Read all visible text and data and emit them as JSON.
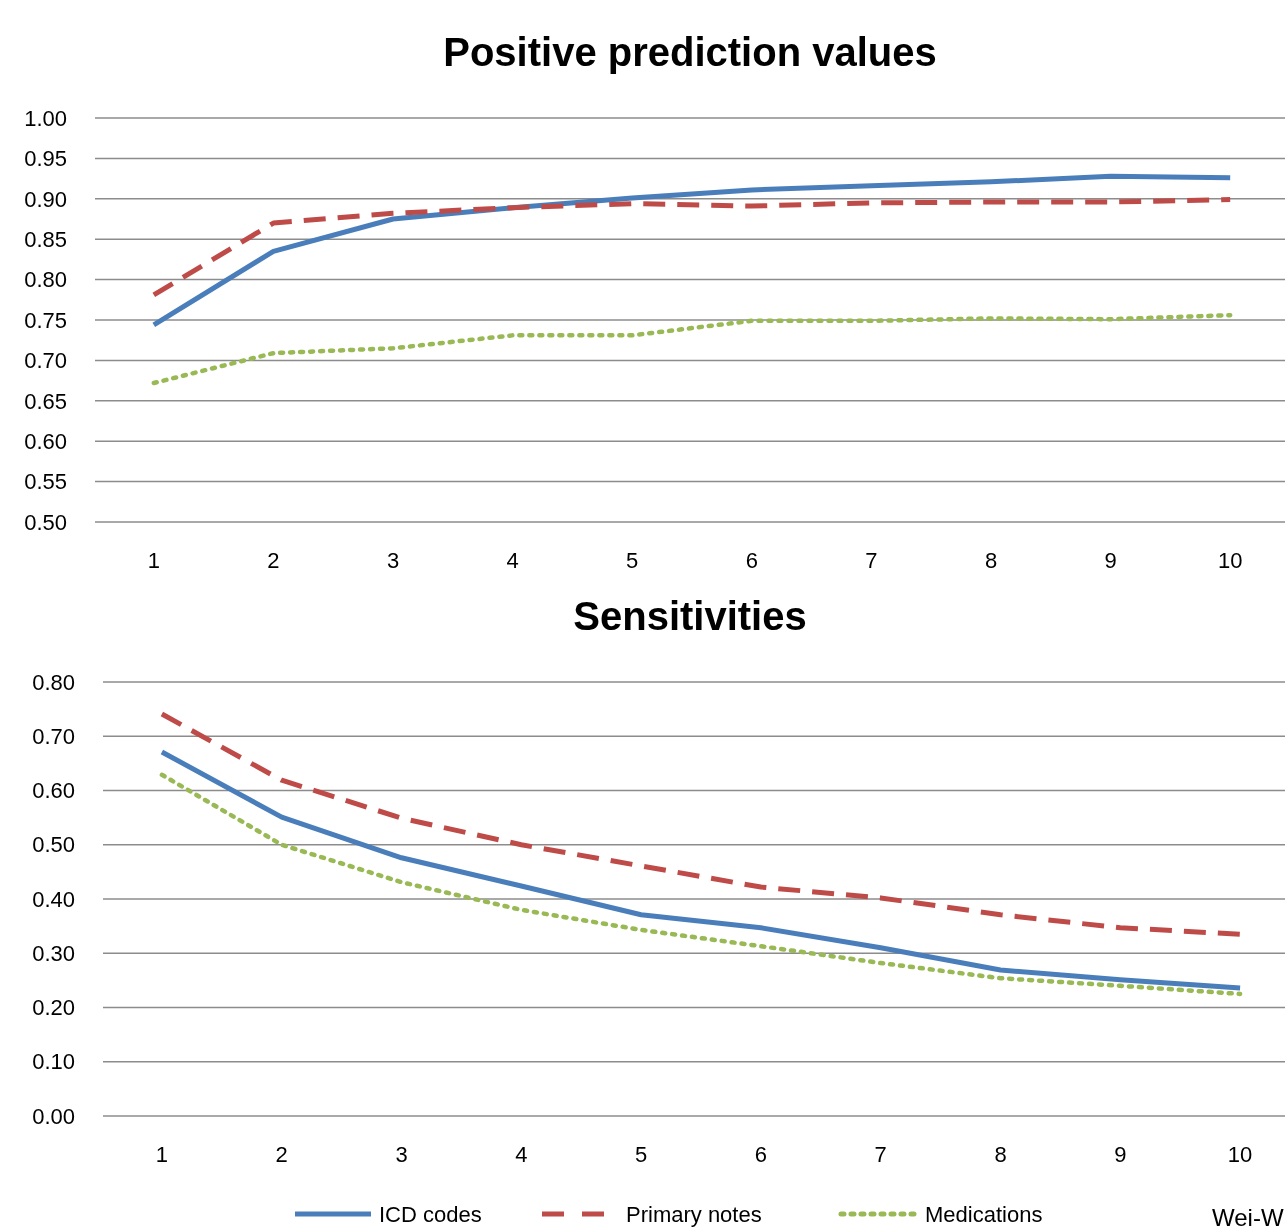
{
  "chart_data": [
    {
      "type": "line",
      "title": "Positive prediction values",
      "categories": [
        "1",
        "2",
        "3",
        "4",
        "5",
        "6",
        "7",
        "8",
        "9",
        "10"
      ],
      "ylim": [
        0.5,
        1.0
      ],
      "yticks": [
        {
          "value": 0.5,
          "label": "0.50"
        },
        {
          "value": 0.55,
          "label": "0.55"
        },
        {
          "value": 0.6,
          "label": "0.60"
        },
        {
          "value": 0.65,
          "label": "0.65"
        },
        {
          "value": 0.7,
          "label": "0.70"
        },
        {
          "value": 0.75,
          "label": "0.75"
        },
        {
          "value": 0.8,
          "label": "0.80"
        },
        {
          "value": 0.85,
          "label": "0.85"
        },
        {
          "value": 0.9,
          "label": "0.90"
        },
        {
          "value": 0.95,
          "label": "0.95"
        },
        {
          "value": 1.0,
          "label": "1.00"
        }
      ],
      "grid": "y",
      "legend": false,
      "marker": "none",
      "series": [
        {
          "color": "#4a7ebb",
          "line_style": "solid",
          "values": [
            0.744,
            0.835,
            0.875,
            0.889,
            0.901,
            0.911,
            0.916,
            0.921,
            0.928,
            0.926
          ]
        },
        {
          "color": "#be4b48",
          "line_style": "dashed",
          "values": [
            0.781,
            0.87,
            0.882,
            0.889,
            0.894,
            0.891,
            0.895,
            0.896,
            0.896,
            0.899
          ]
        },
        {
          "color": "#98b954",
          "line_style": "dotted",
          "values": [
            0.672,
            0.709,
            0.715,
            0.731,
            0.731,
            0.749,
            0.749,
            0.752,
            0.751,
            0.756
          ]
        }
      ]
    },
    {
      "type": "line",
      "title": "Sensitivities",
      "categories": [
        "1",
        "2",
        "3",
        "4",
        "5",
        "6",
        "7",
        "8",
        "9",
        "10"
      ],
      "ylim": [
        0,
        0.8
      ],
      "yticks": [
        {
          "value": 0,
          "label": "0.00"
        },
        {
          "value": 0.1,
          "label": "0.10"
        },
        {
          "value": 0.2,
          "label": "0.20"
        },
        {
          "value": 0.3,
          "label": "0.30"
        },
        {
          "value": 0.4,
          "label": "0.40"
        },
        {
          "value": 0.5,
          "label": "0.50"
        },
        {
          "value": 0.6,
          "label": "0.60"
        },
        {
          "value": 0.7,
          "label": "0.70"
        },
        {
          "value": 0.8,
          "label": "0.80"
        }
      ],
      "grid": "y",
      "legend": "bottom",
      "marker": "none",
      "annotations": [
        "Wei-W"
      ],
      "series": [
        {
          "name": "ICD codes",
          "color": "#4a7ebb",
          "line_style": "solid",
          "values": [
            0.671,
            0.551,
            0.476,
            0.424,
            0.371,
            0.347,
            0.31,
            0.269,
            0.251,
            0.236
          ]
        },
        {
          "name": "Primary notes",
          "color": "#be4b48",
          "line_style": "dashed",
          "values": [
            0.741,
            0.619,
            0.549,
            0.5,
            0.461,
            0.422,
            0.402,
            0.371,
            0.347,
            0.335
          ]
        },
        {
          "name": "Medications",
          "color": "#98b954",
          "line_style": "dotted",
          "values": [
            0.629,
            0.5,
            0.431,
            0.38,
            0.343,
            0.313,
            0.282,
            0.254,
            0.24,
            0.225
          ]
        }
      ]
    }
  ]
}
